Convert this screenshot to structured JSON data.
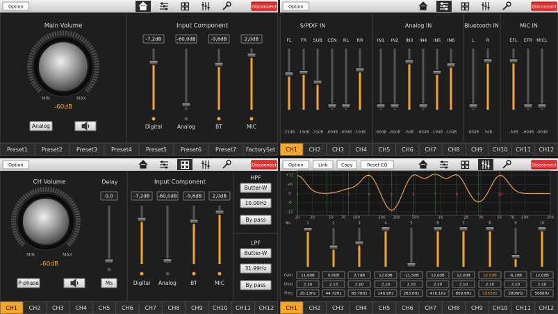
{
  "main_panel": {
    "option": "Option",
    "disconnect": "Disconnect",
    "volume_title": "Main Volume",
    "min": "MIN",
    "max": "MAX",
    "volume_value": "-60dB",
    "source_button": "Analog",
    "input_title": "Input Component",
    "channels": [
      {
        "label": "Digital",
        "value": "-7,2dB"
      },
      {
        "label": "Analog",
        "value": "-60,0dB"
      },
      {
        "label": "BT",
        "value": "-9,6dB"
      },
      {
        "label": "MIC",
        "value": "2,0dB"
      }
    ],
    "presets": [
      "Preset1",
      "Preset2",
      "Preset3",
      "Preset4",
      "Preset5",
      "Preset6",
      "Preset7",
      "FactorySet"
    ]
  },
  "mixer_panel": {
    "option": "Option",
    "disconnect": "Disconnect",
    "groups": [
      {
        "title": "S/PDIF IN",
        "channels": [
          {
            "name": "FL",
            "value": "-21dB"
          },
          {
            "name": "FR",
            "value": "-19dB"
          },
          {
            "name": "SUB",
            "value": "-31dB"
          },
          {
            "name": "CEN",
            "value": "-60dB"
          },
          {
            "name": "RL",
            "value": "-60dB"
          },
          {
            "name": "RR",
            "value": "-16dB"
          }
        ]
      },
      {
        "title": "Analog IN",
        "channels": [
          {
            "name": "IN1",
            "value": "-60dB"
          },
          {
            "name": "IN2",
            "value": "-60dB"
          },
          {
            "name": "IN3",
            "value": "-6dB"
          },
          {
            "name": "IN4",
            "value": "-60dB"
          },
          {
            "name": "IN5",
            "value": "-19dB"
          },
          {
            "name": "IN6",
            "value": "-10dB"
          }
        ]
      },
      {
        "title": "Bluetooth IN",
        "channels": [
          {
            "name": "L",
            "value": "-60dB"
          },
          {
            "name": "R",
            "value": "-5dB"
          }
        ]
      },
      {
        "title": "MIC IN",
        "channels": [
          {
            "name": "EFL",
            "value": "-5dB"
          },
          {
            "name": "EFR",
            "value": "-60dB"
          },
          {
            "name": "MICL",
            "value": "-60dB"
          }
        ]
      }
    ],
    "tabs": [
      "CH1",
      "CH2",
      "CH3",
      "CH4",
      "CH5",
      "CH6",
      "CH7",
      "CH8",
      "CH9",
      "CH10",
      "CH11",
      "CH12"
    ]
  },
  "channel_panel": {
    "option": "Option",
    "disconnect": "Disconnect",
    "volume_title": "CH Volume",
    "min": "MIN",
    "max": "MAX",
    "volume_value": "-60dB",
    "delay_title": "Delay",
    "delay_value": "0,0",
    "phase_button": "P-phase",
    "delay_unit_button": "Ms",
    "input_title": "Input Component",
    "channels": [
      {
        "label": "Digital",
        "value": "-7,2dB"
      },
      {
        "label": "Analog",
        "value": "-60,0dB"
      },
      {
        "label": "BT",
        "value": "-9,6dB"
      },
      {
        "label": "MIC",
        "value": "2,0dB"
      }
    ],
    "hpf": {
      "title": "HPF",
      "type": "Butter-W",
      "freq": "10.00Hz",
      "bypass": "By pass"
    },
    "lpf": {
      "title": "LPF",
      "type": "Butter-W",
      "freq": "31.99Hz",
      "bypass": "By pass"
    },
    "tabs": [
      "CH1",
      "CH2",
      "CH3",
      "CH4",
      "CH5",
      "CH6",
      "CH7",
      "CH8",
      "CH9",
      "CH10",
      "CH11",
      "CH12"
    ]
  },
  "eq_panel": {
    "buttons": [
      "Option",
      "Link",
      "Copy",
      "Reset EQ"
    ],
    "disconnect": "Disconnect",
    "y_labels": [
      "+12",
      "+6",
      "0",
      "-6",
      "-12"
    ],
    "x_labels": [
      "20",
      "30",
      "50",
      "70",
      "100",
      "200",
      "300",
      "500",
      "1K",
      "2K",
      "3K",
      "5K",
      "7K",
      "10K",
      "20K"
    ],
    "row_labels": {
      "no": "No.",
      "gain": "Gain",
      "qval": "Qval",
      "freq": "Freq"
    },
    "bands": [
      {
        "no": "1",
        "gain": "11,6dB",
        "q": "2.10",
        "freq": "20.13Hz"
      },
      {
        "no": "2",
        "gain": "0,0dB",
        "q": "2.10",
        "freq": "44.72Hz"
      },
      {
        "no": "3",
        "gain": "2,7dB",
        "q": "2.10",
        "freq": "80.78Hz"
      },
      {
        "no": "4",
        "gain": "12,0dB",
        "q": "2.10",
        "freq": "140.9Hz"
      },
      {
        "no": "5",
        "gain": "-11,5dB",
        "q": "2.10",
        "freq": "263.0Hz"
      },
      {
        "no": "6",
        "gain": "12,0dB",
        "q": "2.10",
        "freq": "476.1Hz"
      },
      {
        "no": "7",
        "gain": "12,0dB",
        "q": "2.10",
        "freq": "859.9Hz"
      },
      {
        "no": "8",
        "gain": "12,0dB",
        "q": "2.10",
        "freq": "1553Hz"
      },
      {
        "no": "9",
        "gain": "-6,2dB",
        "q": "2.10",
        "freq": "2806Hz"
      },
      {
        "no": "10",
        "gain": "12,0dB",
        "q": "2.10",
        "freq": "5068Hz"
      }
    ],
    "tabs": [
      "CH1",
      "CH2",
      "CH3",
      "CH4",
      "CH5",
      "CH6",
      "CH7",
      "CH8",
      "CH9",
      "CH10",
      "CH11",
      "CH12"
    ]
  }
}
